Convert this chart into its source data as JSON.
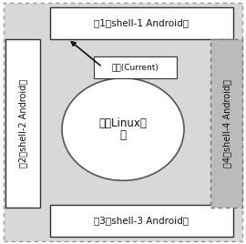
{
  "bg_color": "#d8d8d8",
  "fig_bg": "#ffffff",
  "shell1_label": "壳1（shell-1 Android）",
  "shell2_label": "壳2（shell-2 Android）",
  "shell3_label": "壳3（shell-3 Android）",
  "shell4_label": "壳4（shell-4 Android）",
  "kernel_line1": "内核Linux系",
  "kernel_line2": "统",
  "current_label": "当前(Current)",
  "box_edge": "#333333",
  "ellipse_color": "#ffffff",
  "ellipse_edge": "#555555",
  "text_color": "#111111",
  "arrow_color": "#111111",
  "shell4_bg": "#bbbbbb",
  "shell4_edge": "#777777"
}
